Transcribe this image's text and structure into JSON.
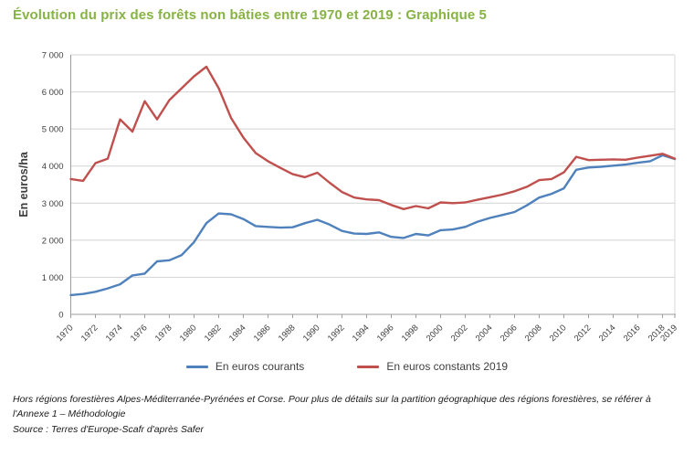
{
  "page": {
    "title": "Évolution du prix des forêts non bâties entre 1970 et 2019 : Graphique 5",
    "title_color": "#87B345",
    "note": "Hors régions forestières Alpes-Méditerranée-Pyrénées et Corse. Pour plus de détails sur la partition géographique des régions forestières, se référer à l'Annexe 1 – Méthodologie",
    "source": "Source : Terres d'Europe-Scafr d'après Safer"
  },
  "chart_data": {
    "type": "line",
    "title": "Évolution du prix des forêts non bâties entre 1970 et 2019 : Graphique 5",
    "ylabel": "En euros/ha",
    "xlabel": "",
    "ylim": [
      0,
      7000
    ],
    "ytick_step": 1000,
    "ytick_labels": [
      "0",
      "1 000",
      "2 000",
      "3 000",
      "4 000",
      "5 000",
      "6 000",
      "7 000"
    ],
    "xticks": [
      1970,
      1972,
      1974,
      1976,
      1978,
      1980,
      1982,
      1984,
      1986,
      1988,
      1990,
      1992,
      1994,
      1996,
      1998,
      2000,
      2002,
      2004,
      2006,
      2008,
      2010,
      2012,
      2014,
      2016,
      2018,
      2019
    ],
    "xtick_labels": [
      "1970",
      "1972",
      "1974",
      "1976",
      "1978",
      "1980",
      "1982",
      "1984",
      "1986",
      "1988",
      "1990",
      "1992",
      "1994",
      "1996",
      "1998",
      "2000",
      "2002",
      "2004",
      "2006",
      "2008",
      "2010",
      "2012",
      "2014",
      "2016",
      "2018",
      "2019"
    ],
    "grid": true,
    "legend_position": "bottom",
    "x": [
      1970,
      1971,
      1972,
      1973,
      1974,
      1975,
      1976,
      1977,
      1978,
      1979,
      1980,
      1981,
      1982,
      1983,
      1984,
      1985,
      1986,
      1987,
      1988,
      1989,
      1990,
      1991,
      1992,
      1993,
      1994,
      1995,
      1996,
      1997,
      1998,
      1999,
      2000,
      2001,
      2002,
      2003,
      2004,
      2005,
      2006,
      2007,
      2008,
      2009,
      2010,
      2011,
      2012,
      2013,
      2014,
      2015,
      2016,
      2017,
      2018,
      2019
    ],
    "series": [
      {
        "name": "En euros courants",
        "color": "#4F81BD",
        "values": [
          520,
          550,
          610,
          700,
          810,
          1050,
          1100,
          1430,
          1460,
          1600,
          1950,
          2460,
          2720,
          2700,
          2570,
          2380,
          2360,
          2340,
          2350,
          2460,
          2550,
          2420,
          2250,
          2180,
          2170,
          2210,
          2090,
          2060,
          2170,
          2130,
          2270,
          2290,
          2360,
          2500,
          2600,
          2680,
          2760,
          2940,
          3150,
          3250,
          3400,
          3900,
          3960,
          3980,
          4010,
          4040,
          4090,
          4130,
          4290,
          4190
        ]
      },
      {
        "name": "En euros constants 2019",
        "color": "#C0504D",
        "values": [
          3650,
          3600,
          4080,
          4200,
          5260,
          4930,
          5750,
          5260,
          5780,
          6100,
          6420,
          6680,
          6100,
          5300,
          4770,
          4350,
          4130,
          3950,
          3780,
          3700,
          3820,
          3550,
          3300,
          3150,
          3100,
          3080,
          2950,
          2840,
          2920,
          2860,
          3020,
          3000,
          3020,
          3090,
          3160,
          3230,
          3320,
          3440,
          3620,
          3650,
          3830,
          4250,
          4160,
          4170,
          4180,
          4170,
          4230,
          4280,
          4330,
          4200
        ]
      }
    ]
  }
}
